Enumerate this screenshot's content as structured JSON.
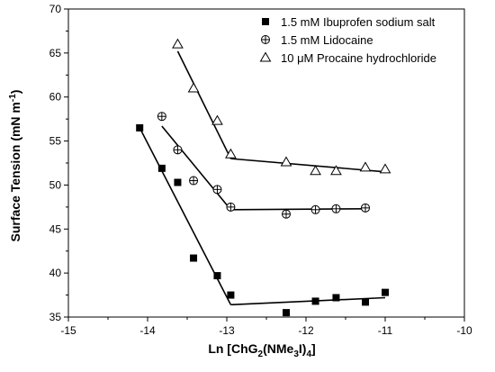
{
  "chart_data": {
    "type": "scatter",
    "xlabel_parts": {
      "a": "Ln [ChG",
      "b": "2",
      "c": "(NMe",
      "d": "3",
      "e": "I)",
      "f": "4",
      "g": "]"
    },
    "ylabel_parts": {
      "a": "Surface Tension (mN m",
      "b": "-1",
      "c": ")"
    },
    "xlim": [
      -15,
      -10
    ],
    "ylim": [
      35,
      70
    ],
    "xticks": [
      -15,
      -14,
      -13,
      -12,
      -11,
      -10
    ],
    "yticks": [
      35,
      40,
      45,
      50,
      55,
      60,
      65,
      70
    ],
    "grid": false,
    "legend_position": "top-right",
    "series": [
      {
        "name": "1.5 mM Ibuprofen sodium salt",
        "marker": "filled-square",
        "points": [
          [
            -14.1,
            56.5
          ],
          [
            -13.82,
            51.9
          ],
          [
            -13.62,
            50.3
          ],
          [
            -13.42,
            41.7
          ],
          [
            -13.12,
            39.7
          ],
          [
            -12.95,
            37.5
          ],
          [
            -12.25,
            35.5
          ],
          [
            -11.88,
            36.8
          ],
          [
            -11.62,
            37.2
          ],
          [
            -11.25,
            36.7
          ],
          [
            -11.0,
            37.8
          ]
        ],
        "fit_lines": [
          [
            [
              -14.1,
              56.5
            ],
            [
              -12.95,
              36.4
            ]
          ],
          [
            [
              -12.95,
              36.4
            ],
            [
              -11.0,
              37.2
            ]
          ]
        ]
      },
      {
        "name": "1.5 mM Lidocaine",
        "marker": "circle-plus",
        "points": [
          [
            -13.82,
            57.8
          ],
          [
            -13.62,
            54.0
          ],
          [
            -13.42,
            50.5
          ],
          [
            -13.12,
            49.5
          ],
          [
            -12.95,
            47.5
          ],
          [
            -12.25,
            46.7
          ],
          [
            -11.88,
            47.2
          ],
          [
            -11.62,
            47.3
          ],
          [
            -11.25,
            47.4
          ]
        ],
        "fit_lines": [
          [
            [
              -13.82,
              56.7
            ],
            [
              -12.95,
              47.2
            ]
          ],
          [
            [
              -12.95,
              47.2
            ],
            [
              -11.25,
              47.3
            ]
          ]
        ]
      },
      {
        "name": "10 μM Procaine hydrochloride",
        "marker": "open-triangle",
        "points": [
          [
            -13.62,
            66.0
          ],
          [
            -13.42,
            61.0
          ],
          [
            -13.12,
            57.3
          ],
          [
            -12.95,
            53.5
          ],
          [
            -12.25,
            52.6
          ],
          [
            -11.88,
            51.6
          ],
          [
            -11.62,
            51.6
          ],
          [
            -11.25,
            52.0
          ],
          [
            -11.0,
            51.8
          ]
        ],
        "fit_lines": [
          [
            [
              -13.62,
              65.2
            ],
            [
              -12.95,
              53.0
            ]
          ],
          [
            [
              -12.95,
              53.0
            ],
            [
              -11.0,
              51.5
            ]
          ]
        ]
      }
    ]
  }
}
